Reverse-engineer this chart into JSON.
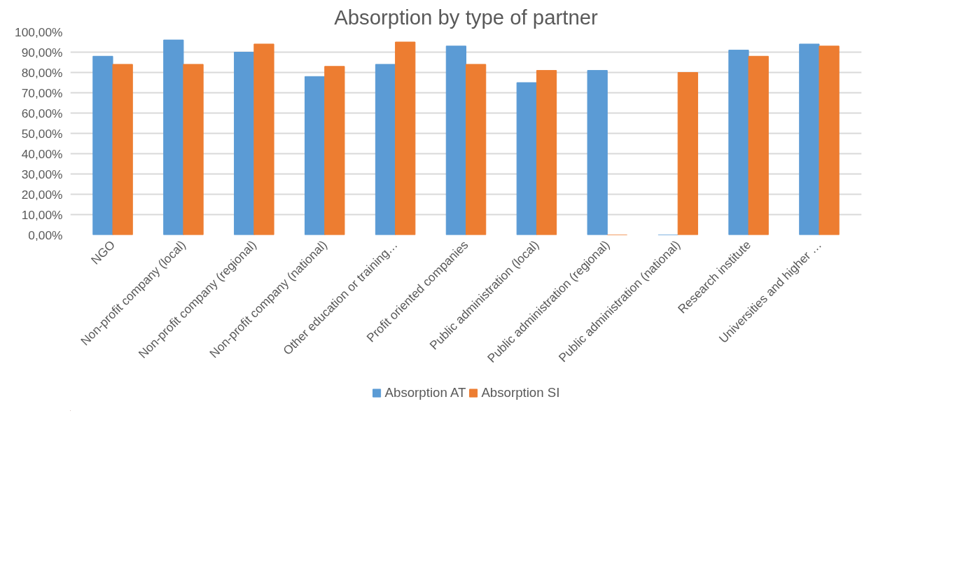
{
  "chart_data": {
    "type": "bar",
    "title": "Absorption by type of partner",
    "categories": [
      "NGO",
      "Non-profit company (local)",
      "Non-profit company (regional)",
      "Non-profit company (national)",
      "Other education or training…",
      "Profit oriented companies",
      "Public administration (local)",
      "Public administration (regional)",
      "Public administration (national)",
      "Research institute",
      "Universities and higher …"
    ],
    "series": [
      {
        "name": "Absorption AT",
        "color": "#5b9bd5",
        "values": [
          88,
          96,
          90,
          78,
          84,
          93,
          75,
          81,
          0,
          91,
          94
        ]
      },
      {
        "name": "Absorption SI",
        "color": "#ed7d31",
        "values": [
          84,
          84,
          94,
          83,
          95,
          84,
          81,
          0,
          80,
          88,
          93
        ]
      }
    ],
    "ylim": [
      0,
      100
    ],
    "yticks": [
      {
        "value": 0,
        "label": "0,00%"
      },
      {
        "value": 10,
        "label": "10,00%"
      },
      {
        "value": 20,
        "label": "20,00%"
      },
      {
        "value": 30,
        "label": "30,00%"
      },
      {
        "value": 40,
        "label": "40,00%"
      },
      {
        "value": 50,
        "label": "50,00%"
      },
      {
        "value": 60,
        "label": "60,00%"
      },
      {
        "value": 70,
        "label": "70,00%"
      },
      {
        "value": 80,
        "label": "80,00%"
      },
      {
        "value": 90,
        "label": "90,00%"
      },
      {
        "value": 100,
        "label": "100,00%"
      }
    ],
    "grid": "y",
    "legend": "bottom"
  }
}
